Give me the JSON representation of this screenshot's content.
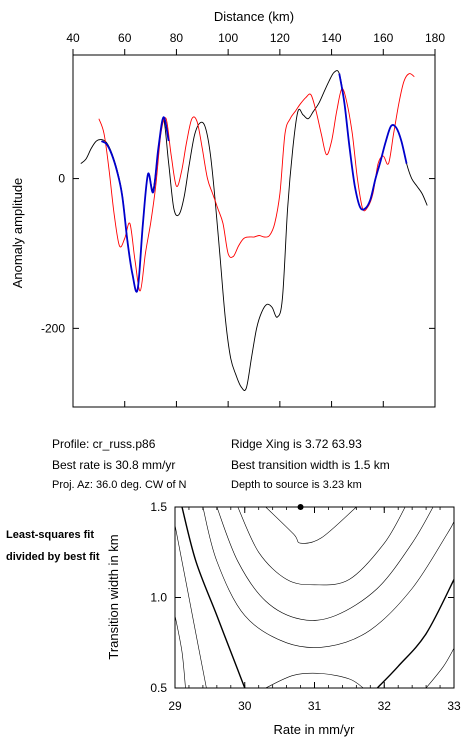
{
  "chart_data": [
    {
      "type": "line",
      "xlabel": "Distance (km)",
      "ylabel": "Anomaly amplitude",
      "xlim": [
        40,
        180
      ],
      "ylim": [
        -305,
        165
      ],
      "xticks": [
        40,
        60,
        80,
        100,
        120,
        140,
        160,
        180
      ],
      "yticks": [
        0,
        -200
      ],
      "ytick_labels": [
        "0",
        "-200"
      ],
      "x_axis_position": "top",
      "grid": false,
      "series": [
        {
          "color": "#000000",
          "x": [
            43,
            45,
            47,
            49,
            51,
            53,
            55,
            57,
            59,
            61,
            63,
            65,
            67,
            69,
            71,
            73,
            75,
            77,
            79,
            81,
            83,
            85,
            87,
            89,
            91,
            93,
            95,
            97,
            99,
            101,
            103,
            105,
            107,
            109,
            111,
            113,
            115,
            117,
            119,
            121,
            123,
            125,
            127,
            129,
            131,
            133,
            135,
            137,
            139,
            141,
            143,
            145,
            147,
            149,
            151,
            153,
            155,
            157,
            159,
            161,
            163,
            165,
            167,
            169,
            171,
            173,
            175,
            177
          ],
          "y": [
            20,
            26,
            40,
            50,
            52,
            48,
            34,
            12,
            -20,
            -80,
            -128,
            -148,
            -60,
            6,
            -14,
            40,
            80,
            20,
            -40,
            -48,
            -24,
            20,
            58,
            74,
            70,
            36,
            -30,
            -110,
            -190,
            -240,
            -262,
            -278,
            -280,
            -240,
            -200,
            -178,
            -168,
            -172,
            -185,
            -160,
            -40,
            40,
            90,
            85,
            80,
            90,
            100,
            115,
            130,
            142,
            140,
            100,
            40,
            -10,
            -38,
            -40,
            -28,
            0,
            24,
            50,
            70,
            68,
            50,
            20,
            0,
            -10,
            -20,
            -36
          ]
        },
        {
          "color": "#0000cc",
          "x": [
            51,
            53,
            55,
            57,
            59,
            61,
            63,
            65,
            67,
            69,
            71,
            73,
            75,
            77,
            143,
            145,
            147,
            149,
            151,
            153,
            155,
            157,
            159,
            161,
            163,
            165,
            167,
            169
          ],
          "y": [
            50,
            46,
            32,
            10,
            -22,
            -82,
            -128,
            -148,
            -62,
            6,
            -18,
            40,
            82,
            50,
            140,
            100,
            40,
            -10,
            -38,
            -40,
            -28,
            0,
            24,
            50,
            70,
            68,
            50,
            20
          ]
        },
        {
          "color": "#ff0000",
          "x": [
            50,
            52,
            54,
            56,
            58,
            60,
            62,
            64,
            66,
            68,
            70,
            72,
            74,
            76,
            78,
            80,
            82,
            84,
            86,
            88,
            90,
            92,
            94,
            96,
            98,
            100,
            102,
            104,
            106,
            108,
            110,
            112,
            114,
            116,
            118,
            120,
            122,
            124,
            126,
            128,
            130,
            132,
            134,
            136,
            138,
            140,
            142,
            144,
            146,
            148,
            150,
            152,
            154,
            156,
            158,
            160,
            162,
            164,
            166,
            168,
            170,
            172
          ],
          "y": [
            80,
            60,
            10,
            -50,
            -90,
            -80,
            -60,
            -110,
            -150,
            -100,
            -60,
            -10,
            60,
            80,
            30,
            -10,
            10,
            50,
            80,
            76,
            40,
            0,
            -20,
            -40,
            -60,
            -100,
            -104,
            -90,
            -80,
            -78,
            -78,
            -76,
            -78,
            -76,
            -60,
            -20,
            60,
            80,
            90,
            100,
            108,
            112,
            90,
            60,
            32,
            50,
            90,
            120,
            100,
            60,
            0,
            -40,
            -38,
            -20,
            20,
            30,
            20,
            60,
            100,
            130,
            140,
            136
          ]
        }
      ]
    },
    {
      "type": "contour",
      "xlabel": "Rate in mm/yr",
      "ylabel": "Transition width in km",
      "xlim": [
        29,
        33
      ],
      "ylim": [
        0.5,
        1.5
      ],
      "xticks": [
        29,
        30,
        31,
        32,
        33
      ],
      "yticks": [
        0.5,
        1.0,
        1.5
      ],
      "ytick_labels": [
        "0.5",
        "1.0",
        "1.5"
      ],
      "best_fit_marker": {
        "x": 30.8,
        "y": 1.5
      },
      "contours": [
        {
          "weight": "thin",
          "points": [
            [
              30.3,
              1.5
            ],
            [
              30.7,
              1.35
            ],
            [
              30.8,
              1.3
            ],
            [
              31.1,
              1.33
            ],
            [
              31.6,
              1.5
            ]
          ]
        },
        {
          "weight": "thin",
          "points": [
            [
              29.9,
              1.5
            ],
            [
              30.2,
              1.25
            ],
            [
              30.6,
              1.1
            ],
            [
              31.0,
              1.07
            ],
            [
              31.5,
              1.1
            ],
            [
              32.0,
              1.3
            ],
            [
              32.3,
              1.5
            ]
          ]
        },
        {
          "weight": "thin",
          "points": [
            [
              29.6,
              1.5
            ],
            [
              29.9,
              1.2
            ],
            [
              30.3,
              0.98
            ],
            [
              30.8,
              0.88
            ],
            [
              31.3,
              0.9
            ],
            [
              31.9,
              1.05
            ],
            [
              32.4,
              1.3
            ],
            [
              32.7,
              1.5
            ]
          ]
        },
        {
          "weight": "thin",
          "points": [
            [
              29.4,
              1.5
            ],
            [
              29.6,
              1.2
            ],
            [
              30.0,
              0.9
            ],
            [
              30.6,
              0.75
            ],
            [
              31.2,
              0.73
            ],
            [
              31.8,
              0.82
            ],
            [
              32.4,
              1.05
            ],
            [
              32.9,
              1.35
            ],
            [
              33.0,
              1.42
            ]
          ]
        },
        {
          "weight": "thick",
          "points": [
            [
              29.1,
              1.5
            ],
            [
              29.3,
              1.2
            ],
            [
              29.6,
              0.9
            ],
            [
              29.9,
              0.6
            ],
            [
              30.0,
              0.5
            ]
          ]
        },
        {
          "weight": "thick",
          "points": [
            [
              31.9,
              0.5
            ],
            [
              32.2,
              0.62
            ],
            [
              32.6,
              0.8
            ],
            [
              33.0,
              1.1
            ]
          ]
        },
        {
          "weight": "thin",
          "points": [
            [
              29.0,
              1.4
            ],
            [
              29.15,
              1.1
            ],
            [
              29.3,
              0.8
            ],
            [
              29.45,
              0.5
            ]
          ]
        },
        {
          "weight": "thin",
          "points": [
            [
              30.3,
              0.5
            ],
            [
              30.7,
              0.57
            ],
            [
              31.1,
              0.58
            ],
            [
              31.5,
              0.55
            ],
            [
              31.7,
              0.5
            ]
          ]
        },
        {
          "weight": "thin",
          "points": [
            [
              29.0,
              0.9
            ],
            [
              29.1,
              0.7
            ],
            [
              29.15,
              0.5
            ]
          ]
        },
        {
          "weight": "thin",
          "points": [
            [
              32.6,
              0.5
            ],
            [
              32.85,
              0.62
            ],
            [
              33.0,
              0.72
            ]
          ]
        }
      ]
    }
  ],
  "info": {
    "profile": "Profile: cr_russ.p86",
    "ridge": "Ridge Xing is 3.72 63.93",
    "best_rate": "Best rate is 30.8 mm/yr",
    "best_width": "Best transition width is 1.5 km",
    "proj": "Proj. Az: 36.0 deg. CW of N",
    "depth": "Depth to source is    3.23 km"
  },
  "side_label": "Least-squares fit divided by best fit"
}
